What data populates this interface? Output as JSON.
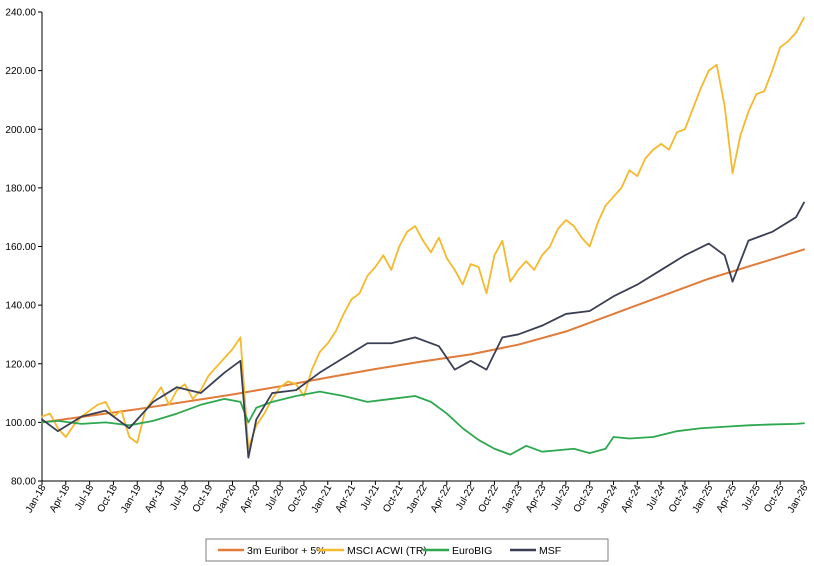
{
  "chart_data": {
    "type": "line",
    "title": "",
    "xlabel": "",
    "ylabel": "",
    "ylim": [
      80,
      240
    ],
    "ytick_labels": [
      "80.00",
      "100.00",
      "120.00",
      "140.00",
      "160.00",
      "180.00",
      "200.00",
      "220.00",
      "240.00"
    ],
    "x_range": [
      "2018-01",
      "2026-01"
    ],
    "xtick_labels": [
      "Jan-18",
      "Apr-18",
      "Jul-18",
      "Oct-18",
      "Jan-19",
      "Apr-19",
      "Jul-19",
      "Oct-19",
      "Jan-20",
      "Apr-20",
      "Jul-20",
      "Oct-20",
      "Jan-21",
      "Apr-21",
      "Jul-21",
      "Oct-21",
      "Jan-22",
      "Apr-22",
      "Jul-22",
      "Oct-22",
      "Jan-23",
      "Apr-23",
      "Jul-23",
      "Oct-23",
      "Jan-24",
      "Apr-24",
      "Jul-24",
      "Oct-24",
      "Jan-25",
      "Apr-25",
      "Jul-25",
      "Oct-25",
      "Jan-26"
    ],
    "grid": false,
    "legend_position": "bottom",
    "series": [
      {
        "name": "3m Euribor + 5%",
        "color": "#E07B39",
        "points": [
          [
            "2018-01",
            100
          ],
          [
            "2019-01",
            104.5
          ],
          [
            "2020-01",
            109.5
          ],
          [
            "2020-07",
            112.3
          ],
          [
            "2021-01",
            115.3
          ],
          [
            "2021-07",
            118.2
          ],
          [
            "2022-01",
            120.8
          ],
          [
            "2022-07",
            123.2
          ],
          [
            "2023-01",
            126.5
          ],
          [
            "2023-07",
            131
          ],
          [
            "2024-01",
            137
          ],
          [
            "2024-07",
            143
          ],
          [
            "2025-01",
            149
          ],
          [
            "2025-07",
            154
          ],
          [
            "2026-01",
            159
          ]
        ]
      },
      {
        "name": "MSCI ACWI (TR)",
        "color": "#F5B92E",
        "points": [
          [
            "2018-01",
            102
          ],
          [
            "2018-02",
            103
          ],
          [
            "2018-03",
            98
          ],
          [
            "2018-04",
            95
          ],
          [
            "2018-05",
            99
          ],
          [
            "2018-06",
            102
          ],
          [
            "2018-07",
            104
          ],
          [
            "2018-08",
            106
          ],
          [
            "2018-09",
            107
          ],
          [
            "2018-10",
            102
          ],
          [
            "2018-11",
            104
          ],
          [
            "2018-12",
            95
          ],
          [
            "2019-01",
            93
          ],
          [
            "2019-02",
            104
          ],
          [
            "2019-03",
            108
          ],
          [
            "2019-04",
            112
          ],
          [
            "2019-05",
            106
          ],
          [
            "2019-06",
            111
          ],
          [
            "2019-07",
            113
          ],
          [
            "2019-08",
            108
          ],
          [
            "2019-09",
            111
          ],
          [
            "2019-10",
            116
          ],
          [
            "2019-11",
            119
          ],
          [
            "2019-12",
            122
          ],
          [
            "2020-01",
            125
          ],
          [
            "2020-02",
            129
          ],
          [
            "2020-03",
            91
          ],
          [
            "2020-04",
            99
          ],
          [
            "2020-05",
            103
          ],
          [
            "2020-06",
            108
          ],
          [
            "2020-07",
            112
          ],
          [
            "2020-08",
            114
          ],
          [
            "2020-09",
            113
          ],
          [
            "2020-10",
            109
          ],
          [
            "2020-11",
            118
          ],
          [
            "2020-12",
            124
          ],
          [
            "2021-01",
            127
          ],
          [
            "2021-02",
            131
          ],
          [
            "2021-03",
            137
          ],
          [
            "2021-04",
            142
          ],
          [
            "2021-05",
            144
          ],
          [
            "2021-06",
            150
          ],
          [
            "2021-07",
            153
          ],
          [
            "2021-08",
            157
          ],
          [
            "2021-09",
            152
          ],
          [
            "2021-10",
            160
          ],
          [
            "2021-11",
            165
          ],
          [
            "2021-12",
            167
          ],
          [
            "2022-01",
            162
          ],
          [
            "2022-02",
            158
          ],
          [
            "2022-03",
            163
          ],
          [
            "2022-04",
            156
          ],
          [
            "2022-05",
            152
          ],
          [
            "2022-06",
            147
          ],
          [
            "2022-07",
            154
          ],
          [
            "2022-08",
            153
          ],
          [
            "2022-09",
            144
          ],
          [
            "2022-10",
            157
          ],
          [
            "2022-11",
            162
          ],
          [
            "2022-12",
            148
          ],
          [
            "2023-01",
            152
          ],
          [
            "2023-02",
            155
          ],
          [
            "2023-03",
            152
          ],
          [
            "2023-04",
            157
          ],
          [
            "2023-05",
            160
          ],
          [
            "2023-06",
            166
          ],
          [
            "2023-07",
            169
          ],
          [
            "2023-08",
            167
          ],
          [
            "2023-09",
            163
          ],
          [
            "2023-10",
            160
          ],
          [
            "2023-11",
            168
          ],
          [
            "2023-12",
            174
          ],
          [
            "2024-01",
            177
          ],
          [
            "2024-02",
            180
          ],
          [
            "2024-03",
            186
          ],
          [
            "2024-04",
            184
          ],
          [
            "2024-05",
            190
          ],
          [
            "2024-06",
            193
          ],
          [
            "2024-07",
            195
          ],
          [
            "2024-08",
            193
          ],
          [
            "2024-09",
            199
          ],
          [
            "2024-10",
            200
          ],
          [
            "2024-11",
            207
          ],
          [
            "2024-12",
            214
          ],
          [
            "2025-01",
            220
          ],
          [
            "2025-02",
            222
          ],
          [
            "2025-03",
            208
          ],
          [
            "2025-04",
            185
          ],
          [
            "2025-05",
            198
          ],
          [
            "2025-06",
            206
          ],
          [
            "2025-07",
            212
          ],
          [
            "2025-08",
            213
          ],
          [
            "2025-09",
            220
          ],
          [
            "2025-10",
            228
          ],
          [
            "2025-11",
            230
          ],
          [
            "2025-12",
            233
          ],
          [
            "2026-01",
            238
          ]
        ]
      },
      {
        "name": "EuroBIG",
        "color": "#2EA84F",
        "points": [
          [
            "2018-01",
            100
          ],
          [
            "2018-03",
            100.5
          ],
          [
            "2018-06",
            99.5
          ],
          [
            "2018-09",
            100
          ],
          [
            "2018-12",
            99
          ],
          [
            "2019-03",
            100.5
          ],
          [
            "2019-06",
            103
          ],
          [
            "2019-09",
            106
          ],
          [
            "2019-12",
            108
          ],
          [
            "2020-02",
            107
          ],
          [
            "2020-03",
            100
          ],
          [
            "2020-04",
            105
          ],
          [
            "2020-06",
            107
          ],
          [
            "2020-09",
            109
          ],
          [
            "2020-12",
            110.5
          ],
          [
            "2021-03",
            109
          ],
          [
            "2021-06",
            107
          ],
          [
            "2021-09",
            108
          ],
          [
            "2021-12",
            109
          ],
          [
            "2022-02",
            107
          ],
          [
            "2022-04",
            103
          ],
          [
            "2022-06",
            98
          ],
          [
            "2022-08",
            94
          ],
          [
            "2022-10",
            91
          ],
          [
            "2022-12",
            89
          ],
          [
            "2023-02",
            92
          ],
          [
            "2023-04",
            90
          ],
          [
            "2023-06",
            90.5
          ],
          [
            "2023-08",
            91
          ],
          [
            "2023-10",
            89.5
          ],
          [
            "2023-12",
            91
          ],
          [
            "2024-01",
            95
          ],
          [
            "2024-03",
            94.5
          ],
          [
            "2024-06",
            95
          ],
          [
            "2024-09",
            97
          ],
          [
            "2024-12",
            98
          ],
          [
            "2025-03",
            98.5
          ],
          [
            "2025-06",
            99
          ],
          [
            "2025-09",
            99.3
          ],
          [
            "2025-12",
            99.5
          ],
          [
            "2026-01",
            99.7
          ]
        ]
      },
      {
        "name": "MSF",
        "color": "#3A3F55",
        "points": [
          [
            "2018-01",
            101
          ],
          [
            "2018-03",
            97
          ],
          [
            "2018-06",
            102
          ],
          [
            "2018-09",
            104
          ],
          [
            "2018-12",
            98
          ],
          [
            "2019-03",
            107
          ],
          [
            "2019-06",
            112
          ],
          [
            "2019-09",
            110
          ],
          [
            "2019-12",
            117
          ],
          [
            "2020-02",
            121
          ],
          [
            "2020-03",
            88
          ],
          [
            "2020-04",
            101
          ],
          [
            "2020-06",
            110
          ],
          [
            "2020-09",
            111
          ],
          [
            "2020-12",
            117
          ],
          [
            "2021-03",
            122
          ],
          [
            "2021-06",
            127
          ],
          [
            "2021-09",
            127
          ],
          [
            "2021-12",
            129
          ],
          [
            "2022-03",
            126
          ],
          [
            "2022-05",
            118
          ],
          [
            "2022-07",
            121
          ],
          [
            "2022-09",
            118
          ],
          [
            "2022-11",
            129
          ],
          [
            "2023-01",
            130
          ],
          [
            "2023-04",
            133
          ],
          [
            "2023-07",
            137
          ],
          [
            "2023-10",
            138
          ],
          [
            "2024-01",
            143
          ],
          [
            "2024-04",
            147
          ],
          [
            "2024-07",
            152
          ],
          [
            "2024-10",
            157
          ],
          [
            "2025-01",
            161
          ],
          [
            "2025-03",
            157
          ],
          [
            "2025-04",
            148
          ],
          [
            "2025-06",
            162
          ],
          [
            "2025-09",
            165
          ],
          [
            "2025-12",
            170
          ],
          [
            "2026-01",
            175
          ]
        ]
      }
    ]
  }
}
